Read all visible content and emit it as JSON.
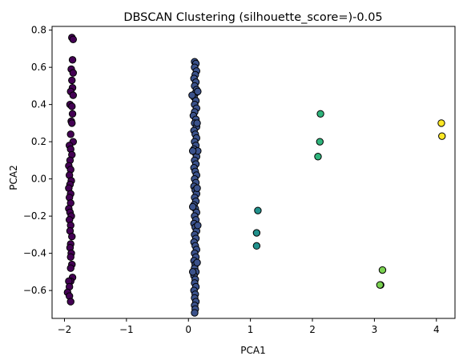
{
  "chart_data": {
    "type": "scatter",
    "title": "DBSCAN Clustering (silhouette_score=)-0.05",
    "xlabel": "PCA1",
    "ylabel": "PCA2",
    "xlim": [
      -2.2,
      4.3
    ],
    "ylim": [
      -0.75,
      0.82
    ],
    "xticks": [
      -2,
      -1,
      0,
      1,
      2,
      3,
      4
    ],
    "yticks": [
      -0.6,
      -0.4,
      -0.2,
      0.0,
      0.2,
      0.4,
      0.6,
      0.8
    ],
    "ytick_labels": [
      "−0.6",
      "−0.4",
      "−0.2",
      "0.0",
      "0.2",
      "0.4",
      "0.6",
      "0.8"
    ],
    "xtick_labels": [
      "−2",
      "−1",
      "0",
      "1",
      "2",
      "3",
      "4"
    ],
    "grid": false,
    "marker_edge_color": "#000000",
    "series": [
      {
        "color": "#440154",
        "points": [
          [
            -1.88,
            0.76
          ],
          [
            -1.86,
            0.75
          ],
          [
            -1.87,
            0.64
          ],
          [
            -1.89,
            0.59
          ],
          [
            -1.86,
            0.57
          ],
          [
            -1.88,
            0.53
          ],
          [
            -1.87,
            0.49
          ],
          [
            -1.9,
            0.47
          ],
          [
            -1.86,
            0.45
          ],
          [
            -1.91,
            0.4
          ],
          [
            -1.88,
            0.39
          ],
          [
            -1.87,
            0.35
          ],
          [
            -1.89,
            0.31
          ],
          [
            -1.88,
            0.3
          ],
          [
            -1.9,
            0.24
          ],
          [
            -1.86,
            0.2
          ],
          [
            -1.92,
            0.18
          ],
          [
            -1.9,
            0.16
          ],
          [
            -1.88,
            0.13
          ],
          [
            -1.91,
            0.1
          ],
          [
            -1.93,
            0.07
          ],
          [
            -1.9,
            0.05
          ],
          [
            -1.92,
            0.02
          ],
          [
            -1.89,
            -0.01
          ],
          [
            -1.91,
            -0.03
          ],
          [
            -1.93,
            -0.05
          ],
          [
            -1.9,
            -0.08
          ],
          [
            -1.92,
            -0.1
          ],
          [
            -1.9,
            -0.13
          ],
          [
            -1.93,
            -0.16
          ],
          [
            -1.91,
            -0.18
          ],
          [
            -1.89,
            -0.2
          ],
          [
            -1.92,
            -0.22
          ],
          [
            -1.9,
            -0.25
          ],
          [
            -1.91,
            -0.28
          ],
          [
            -1.88,
            -0.31
          ],
          [
            -1.9,
            -0.35
          ],
          [
            -1.91,
            -0.37
          ],
          [
            -1.89,
            -0.4
          ],
          [
            -1.9,
            -0.42
          ],
          [
            -1.88,
            -0.46
          ],
          [
            -1.9,
            -0.48
          ],
          [
            -1.87,
            -0.53
          ],
          [
            -1.9,
            -0.55
          ],
          [
            -1.93,
            -0.55
          ],
          [
            -1.92,
            -0.58
          ],
          [
            -1.95,
            -0.61
          ],
          [
            -1.92,
            -0.63
          ],
          [
            -1.9,
            -0.66
          ]
        ]
      },
      {
        "color": "#3b528b",
        "points": [
          [
            0.1,
            0.63
          ],
          [
            0.12,
            0.62
          ],
          [
            0.1,
            0.6
          ],
          [
            0.13,
            0.58
          ],
          [
            0.11,
            0.56
          ],
          [
            0.09,
            0.54
          ],
          [
            0.12,
            0.52
          ],
          [
            0.1,
            0.5
          ],
          [
            0.13,
            0.48
          ],
          [
            0.11,
            0.46
          ],
          [
            0.09,
            0.44
          ],
          [
            0.12,
            0.42
          ],
          [
            0.1,
            0.4
          ],
          [
            0.13,
            0.38
          ],
          [
            0.1,
            0.36
          ],
          [
            0.08,
            0.34
          ],
          [
            0.12,
            0.32
          ],
          [
            0.1,
            0.3
          ],
          [
            0.13,
            0.28
          ],
          [
            0.09,
            0.26
          ],
          [
            0.11,
            0.24
          ],
          [
            0.13,
            0.22
          ],
          [
            0.1,
            0.2
          ],
          [
            0.12,
            0.18
          ],
          [
            0.09,
            0.16
          ],
          [
            0.11,
            0.14
          ],
          [
            0.13,
            0.12
          ],
          [
            0.1,
            0.1
          ],
          [
            0.12,
            0.08
          ],
          [
            0.09,
            0.06
          ],
          [
            0.11,
            0.04
          ],
          [
            0.13,
            0.02
          ],
          [
            0.1,
            0.0
          ],
          [
            0.12,
            -0.02
          ],
          [
            0.09,
            -0.04
          ],
          [
            0.11,
            -0.06
          ],
          [
            0.13,
            -0.08
          ],
          [
            0.1,
            -0.1
          ],
          [
            0.12,
            -0.12
          ],
          [
            0.09,
            -0.14
          ],
          [
            0.11,
            -0.16
          ],
          [
            0.13,
            -0.18
          ],
          [
            0.1,
            -0.2
          ],
          [
            0.12,
            -0.22
          ],
          [
            0.09,
            -0.24
          ],
          [
            0.11,
            -0.26
          ],
          [
            0.13,
            -0.28
          ],
          [
            0.1,
            -0.3
          ],
          [
            0.12,
            -0.32
          ],
          [
            0.09,
            -0.34
          ],
          [
            0.11,
            -0.36
          ],
          [
            0.13,
            -0.38
          ],
          [
            0.1,
            -0.4
          ],
          [
            0.12,
            -0.42
          ],
          [
            0.09,
            -0.44
          ],
          [
            0.11,
            -0.46
          ],
          [
            0.1,
            -0.48
          ],
          [
            0.12,
            -0.5
          ],
          [
            0.09,
            -0.52
          ],
          [
            0.11,
            -0.54
          ],
          [
            0.1,
            -0.56
          ],
          [
            0.12,
            -0.58
          ],
          [
            0.09,
            -0.6
          ],
          [
            0.11,
            -0.62
          ],
          [
            0.1,
            -0.64
          ],
          [
            0.12,
            -0.66
          ],
          [
            0.1,
            -0.68
          ],
          [
            0.11,
            -0.7
          ],
          [
            0.1,
            -0.72
          ],
          [
            0.15,
            0.47
          ],
          [
            0.14,
            0.3
          ],
          [
            0.15,
            0.15
          ],
          [
            0.14,
            -0.05
          ],
          [
            0.15,
            -0.25
          ],
          [
            0.14,
            -0.45
          ],
          [
            0.07,
            0.15
          ],
          [
            0.07,
            -0.15
          ],
          [
            0.06,
            0.45
          ],
          [
            0.07,
            -0.5
          ]
        ]
      },
      {
        "color": "#21918c",
        "points": [
          [
            1.12,
            -0.17
          ],
          [
            1.1,
            -0.29
          ],
          [
            1.1,
            -0.36
          ]
        ]
      },
      {
        "color": "#2fb47c",
        "points": [
          [
            2.13,
            0.35
          ],
          [
            2.12,
            0.2
          ],
          [
            2.09,
            0.12
          ]
        ]
      },
      {
        "color": "#7ad151",
        "points": [
          [
            3.13,
            -0.49
          ],
          [
            3.1,
            -0.57
          ],
          [
            3.09,
            -0.57
          ]
        ]
      },
      {
        "color": "#fde725",
        "points": [
          [
            4.08,
            0.3
          ],
          [
            4.09,
            0.23
          ]
        ]
      }
    ]
  }
}
